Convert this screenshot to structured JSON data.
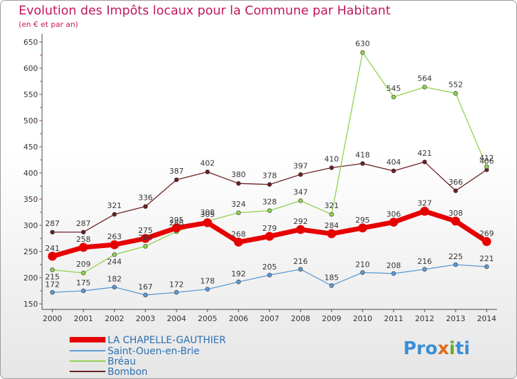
{
  "title": "Evolution des Impôts locaux pour la Commune par Habitant",
  "subtitle": "(en € et par an)",
  "logo": {
    "p1": "Pro",
    "p2": "x",
    "p3": "i",
    "p4": "ti"
  },
  "chart_data": {
    "type": "line",
    "x": [
      "2000",
      "2001",
      "2002",
      "2003",
      "2004",
      "2005",
      "2006",
      "2007",
      "2008",
      "2009",
      "2010",
      "2011",
      "2012",
      "2013",
      "2014"
    ],
    "ylim": [
      150,
      650
    ],
    "yticks": [
      150,
      200,
      250,
      300,
      350,
      400,
      450,
      500,
      550,
      600,
      650
    ],
    "grid": false,
    "legend_position": "bottom-left",
    "series": [
      {
        "name": "LA CHAPELLE-GAUTHIER",
        "color": "#e60000",
        "values": [
          241,
          258,
          263,
          275,
          295,
          305,
          268,
          279,
          292,
          284,
          295,
          306,
          327,
          308,
          269
        ]
      },
      {
        "name": "Saint-Ouen-en-Brie",
        "color": "#5b9bd5",
        "values": [
          172,
          175,
          182,
          167,
          172,
          178,
          192,
          205,
          216,
          185,
          210,
          208,
          216,
          225,
          221
        ]
      },
      {
        "name": "Bréau",
        "color": "#8fd14f",
        "values": [
          215,
          209,
          244,
          260,
          288,
          308,
          324,
          328,
          347,
          321,
          630,
          545,
          564,
          552,
          412
        ]
      },
      {
        "name": "Bombon",
        "color": "#6b1f24",
        "values": [
          287,
          287,
          321,
          336,
          387,
          402,
          380,
          378,
          397,
          410,
          418,
          404,
          421,
          366,
          406
        ]
      }
    ]
  }
}
